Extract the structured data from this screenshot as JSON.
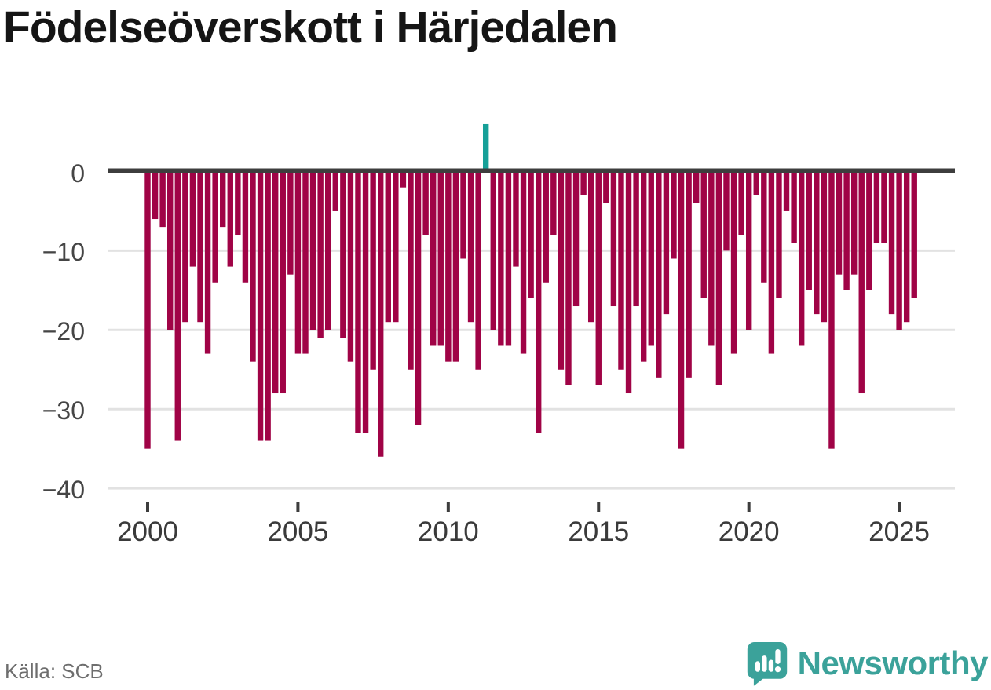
{
  "title": "Födelseöverskott i Härjedalen",
  "source": "Källa: SCB",
  "brand": {
    "name": "Newsworthy",
    "color": "#3ba29a"
  },
  "chart_data": {
    "type": "bar",
    "title": "Födelseöverskott i Härjedalen",
    "frequency": "quarterly",
    "period_start": "2000 Q1",
    "period_end": "2025 Q3",
    "ylim": [
      -40,
      8
    ],
    "grid": true,
    "legend": "none",
    "colors": {
      "negative_bar": "#a00346",
      "positive_bar": "#16a098",
      "gridline": "#e2e2e2",
      "zero_line": "#3d3d3d"
    },
    "y_ticks": [
      {
        "label": "0",
        "value": 0
      },
      {
        "label": "−10",
        "value": -10
      },
      {
        "label": "−20",
        "value": -20
      },
      {
        "label": "−30",
        "value": -30
      },
      {
        "label": "−40",
        "value": -40
      }
    ],
    "x_ticks": [
      {
        "label": "2000",
        "year": 2000
      },
      {
        "label": "2005",
        "year": 2005
      },
      {
        "label": "2010",
        "year": 2010
      },
      {
        "label": "2015",
        "year": 2015
      },
      {
        "label": "2020",
        "year": 2020
      },
      {
        "label": "2025",
        "year": 2025
      }
    ],
    "years": [
      {
        "year": 2000,
        "quarters": [
          -35,
          -6,
          -7,
          -20
        ]
      },
      {
        "year": 2001,
        "quarters": [
          -34,
          -19,
          -12,
          -19
        ]
      },
      {
        "year": 2002,
        "quarters": [
          -23,
          -14,
          -7,
          -12
        ]
      },
      {
        "year": 2003,
        "quarters": [
          -8,
          -14,
          -24,
          -34
        ]
      },
      {
        "year": 2004,
        "quarters": [
          -34,
          -28,
          -28,
          -13
        ]
      },
      {
        "year": 2005,
        "quarters": [
          -23,
          -23,
          -20,
          -21
        ]
      },
      {
        "year": 2006,
        "quarters": [
          -20,
          -5,
          -21,
          -24
        ]
      },
      {
        "year": 2007,
        "quarters": [
          -33,
          -33,
          -25,
          -36
        ]
      },
      {
        "year": 2008,
        "quarters": [
          -19,
          -19,
          -2,
          -25
        ]
      },
      {
        "year": 2009,
        "quarters": [
          -32,
          -8,
          -22,
          -22
        ]
      },
      {
        "year": 2010,
        "quarters": [
          -24,
          -24,
          -11,
          -19
        ]
      },
      {
        "year": 2011,
        "quarters": [
          -25,
          6,
          -20,
          -22
        ]
      },
      {
        "year": 2012,
        "quarters": [
          -22,
          -12,
          -23,
          -16
        ]
      },
      {
        "year": 2013,
        "quarters": [
          -33,
          -14,
          -8,
          -25
        ]
      },
      {
        "year": 2014,
        "quarters": [
          -27,
          -17,
          -3,
          -19
        ]
      },
      {
        "year": 2015,
        "quarters": [
          -27,
          -4,
          -17,
          -25
        ]
      },
      {
        "year": 2016,
        "quarters": [
          -28,
          -17,
          -24,
          -22
        ]
      },
      {
        "year": 2017,
        "quarters": [
          -26,
          -18,
          -11,
          -35
        ]
      },
      {
        "year": 2018,
        "quarters": [
          -26,
          -4,
          -16,
          -22
        ]
      },
      {
        "year": 2019,
        "quarters": [
          -27,
          -10,
          -23,
          -8
        ]
      },
      {
        "year": 2020,
        "quarters": [
          -20,
          -3,
          -14,
          -23
        ]
      },
      {
        "year": 2021,
        "quarters": [
          -16,
          -5,
          -9,
          -22
        ]
      },
      {
        "year": 2022,
        "quarters": [
          -15,
          -18,
          -19,
          -35
        ]
      },
      {
        "year": 2023,
        "quarters": [
          -13,
          -15,
          -13,
          -28
        ]
      },
      {
        "year": 2024,
        "quarters": [
          -15,
          -9,
          -9,
          -18
        ]
      },
      {
        "year": 2025,
        "quarters": [
          -20,
          -19,
          -16
        ]
      }
    ]
  }
}
